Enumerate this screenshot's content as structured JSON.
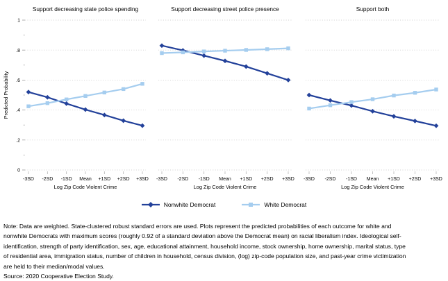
{
  "chart_data": {
    "type": "line",
    "categories": [
      "-3SD",
      "-2SD",
      "-1SD",
      "Mean",
      "+1SD",
      "+2SD",
      "+3SD"
    ],
    "xlabel": "Log Zip Code Violent Crime",
    "ylabel": "Predicted Probability",
    "ylim": [
      0,
      1
    ],
    "yticks": [
      {
        "v": 0,
        "label": "0"
      },
      {
        "v": 0.2,
        "label": ".2"
      },
      {
        "v": 0.4,
        "label": ".4"
      },
      {
        "v": 0.6,
        "label": ".6"
      },
      {
        "v": 0.8,
        "label": ".8"
      },
      {
        "v": 1,
        "label": "1"
      }
    ],
    "yticks_minor": [
      0.1,
      0.3,
      0.5,
      0.7,
      0.9
    ],
    "grid": "dotted-horizontal",
    "legend_position": "bottom-center",
    "panels": [
      {
        "title": "Support decreasing state police spending",
        "series": [
          {
            "name": "Nonwhite Democrat",
            "values": [
              0.52,
              0.485,
              0.443,
              0.403,
              0.367,
              0.329,
              0.296
            ]
          },
          {
            "name": "White Democrat",
            "values": [
              0.425,
              0.446,
              0.471,
              0.494,
              0.517,
              0.54,
              0.575
            ]
          }
        ]
      },
      {
        "title": "Support decreasing street police presence",
        "series": [
          {
            "name": "Nonwhite Democrat",
            "values": [
              0.83,
              0.798,
              0.763,
              0.728,
              0.69,
              0.645,
              0.6
            ]
          },
          {
            "name": "White Democrat",
            "values": [
              0.78,
              0.785,
              0.791,
              0.796,
              0.801,
              0.806,
              0.812
            ]
          }
        ]
      },
      {
        "title": "Support both",
        "series": [
          {
            "name": "Nonwhite Democrat",
            "values": [
              0.5,
              0.464,
              0.43,
              0.392,
              0.358,
              0.327,
              0.295
            ]
          },
          {
            "name": "White Democrat",
            "values": [
              0.41,
              0.432,
              0.453,
              0.472,
              0.497,
              0.515,
              0.537
            ]
          }
        ]
      }
    ],
    "legend": [
      {
        "label": "Nonwhite Democrat",
        "color": "#23419a",
        "marker": "diamond"
      },
      {
        "label": "White Democrat",
        "color": "#a5cdef",
        "marker": "square"
      }
    ],
    "colors": {
      "nonwhite_democrat": "#23419a",
      "white_democrat": "#a5cdef",
      "gridline": "#d2d2d2",
      "tick": "#9a9a9a",
      "minor_tick": "#b5b5b5"
    }
  },
  "note": {
    "lines": [
      "Note: Data are weighted. State-clustered robust standard errors are used. Plots represent the predicted probabilities of each outcome for white and",
      "nonwhite Democrats with maximum scores (roughly 0.92 of a standard deviation above the Democrat mean) on racial liberalism index. Ideological self-",
      "identification, strength of party identification, sex, age, educational attainment, household income, stock ownership, home ownership, marital status, type",
      "of residential area, immigration status, number of children in household, census division, (log) zip-code population size, and past-year crime victimization",
      "are held to their median/modal values."
    ],
    "source": "Source: 2020 Cooperative Election Study."
  }
}
